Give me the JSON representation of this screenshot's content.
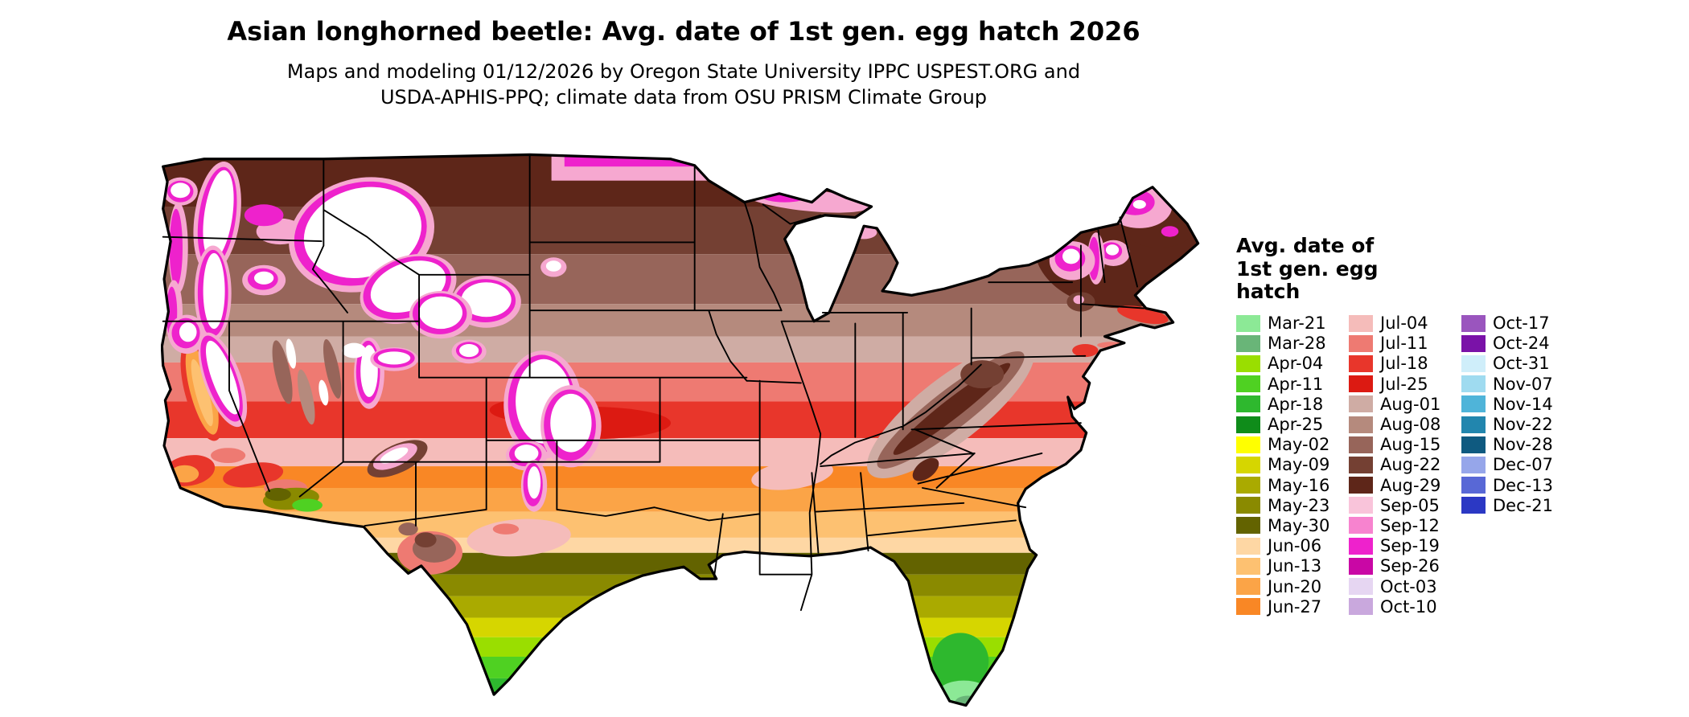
{
  "title": "Asian longhorned beetle: Avg. date of 1st gen. egg hatch 2026",
  "subtitle": "Maps and modeling 01/12/2026 by Oregon State University IPPC USPEST.ORG and\nUSDA-APHIS-PPQ; climate data from OSU PRISM Climate Group",
  "map": {
    "description": "Contiguous United States raster map colored by average date of first generation egg hatch, with state borders"
  },
  "legend": {
    "title": "Avg. date of\n1st gen. egg\nhatch",
    "columns": [
      {
        "entries": [
          {
            "label": "Mar-21",
            "color": "#8ce996"
          },
          {
            "label": "Mar-28",
            "color": "#69b578"
          },
          {
            "label": "Apr-04",
            "color": "#9ade00"
          },
          {
            "label": "Apr-11",
            "color": "#4fd122"
          },
          {
            "label": "Apr-18",
            "color": "#2eb82e"
          },
          {
            "label": "Apr-25",
            "color": "#0f8c1a"
          },
          {
            "label": "May-02",
            "color": "#ffff00"
          },
          {
            "label": "May-09",
            "color": "#d6d600"
          },
          {
            "label": "May-16",
            "color": "#aaaa00"
          },
          {
            "label": "May-23",
            "color": "#8a8a00"
          },
          {
            "label": "May-30",
            "color": "#636300"
          },
          {
            "label": "Jun-06",
            "color": "#fed7a4"
          },
          {
            "label": "Jun-13",
            "color": "#fdc171"
          },
          {
            "label": "Jun-20",
            "color": "#fba447"
          },
          {
            "label": "Jun-27",
            "color": "#f98725"
          }
        ]
      },
      {
        "entries": [
          {
            "label": "Jul-04",
            "color": "#f5bcba"
          },
          {
            "label": "Jul-11",
            "color": "#ee7a72"
          },
          {
            "label": "Jul-18",
            "color": "#e8362b"
          },
          {
            "label": "Jul-25",
            "color": "#dc1a12"
          },
          {
            "label": "Aug-01",
            "color": "#cfaca4"
          },
          {
            "label": "Aug-08",
            "color": "#b58a7d"
          },
          {
            "label": "Aug-15",
            "color": "#97655a"
          },
          {
            "label": "Aug-22",
            "color": "#744033"
          },
          {
            "label": "Aug-29",
            "color": "#5e2619"
          },
          {
            "label": "Sep-05",
            "color": "#f9c4da"
          },
          {
            "label": "Sep-12",
            "color": "#f783cf"
          },
          {
            "label": "Sep-19",
            "color": "#ee22cc"
          },
          {
            "label": "Sep-26",
            "color": "#c907a5"
          },
          {
            "label": "Oct-03",
            "color": "#e6d6f2"
          },
          {
            "label": "Oct-10",
            "color": "#c9a8dd"
          }
        ]
      },
      {
        "entries": [
          {
            "label": "Oct-17",
            "color": "#9a55be"
          },
          {
            "label": "Oct-24",
            "color": "#7a12a8"
          },
          {
            "label": "Oct-31",
            "color": "#cfeefa"
          },
          {
            "label": "Nov-07",
            "color": "#9fdbf0"
          },
          {
            "label": "Nov-14",
            "color": "#4fb4d9"
          },
          {
            "label": "Nov-22",
            "color": "#2286ae"
          },
          {
            "label": "Nov-28",
            "color": "#0f5a80"
          },
          {
            "label": "Dec-07",
            "color": "#96a6ea"
          },
          {
            "label": "Dec-13",
            "color": "#5868d6"
          },
          {
            "label": "Dec-21",
            "color": "#2b38c4"
          }
        ]
      }
    ]
  }
}
